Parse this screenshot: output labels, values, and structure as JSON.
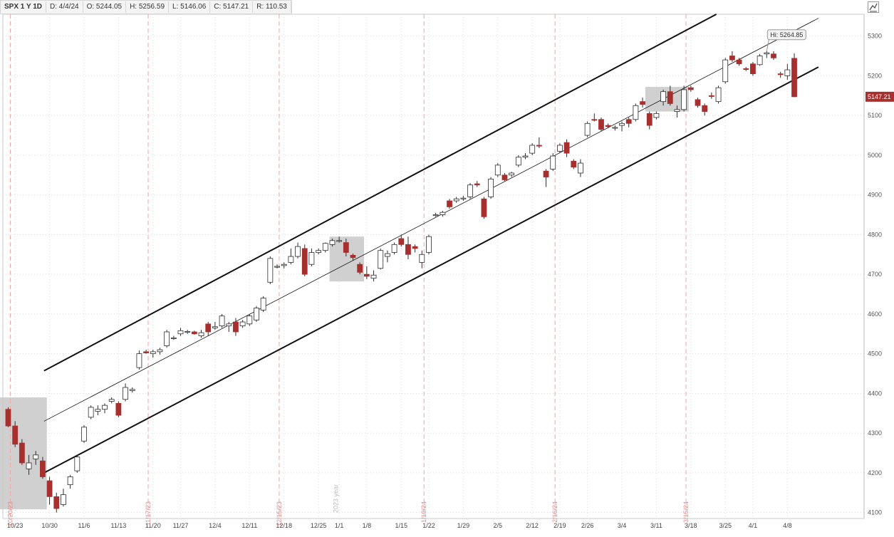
{
  "header": {
    "symbol": "SPX 1 Y 1D",
    "date": "D: 4/4/24",
    "open": "O: 5244.05",
    "high": "H: 5256.59",
    "low": "L: 5146.06",
    "close": "C: 5147.21",
    "range": "R: 110.53"
  },
  "chart_data": {
    "type": "candlestick",
    "ylim": [
      4085,
      5355
    ],
    "yticks": [
      4100,
      4200,
      4300,
      4400,
      4500,
      4600,
      4700,
      4800,
      4900,
      5000,
      5100,
      5200,
      5300
    ],
    "last_price_label": "5147.21",
    "high_callout": "Hi: 5264.85",
    "year_marker": "2023 year",
    "xtick_labels": [
      {
        "label": "10/23",
        "index": 1
      },
      {
        "label": "10/30",
        "index": 6
      },
      {
        "label": "11/6",
        "index": 11
      },
      {
        "label": "11/13",
        "index": 16
      },
      {
        "label": "11/20",
        "index": 21
      },
      {
        "label": "11/27",
        "index": 25
      },
      {
        "label": "12/4",
        "index": 30
      },
      {
        "label": "12/11",
        "index": 35
      },
      {
        "label": "12/18",
        "index": 40
      },
      {
        "label": "12/25",
        "index": 45
      },
      {
        "label": "1/1",
        "index": 48
      },
      {
        "label": "1/8",
        "index": 52
      },
      {
        "label": "1/15",
        "index": 57
      },
      {
        "label": "1/22",
        "index": 61
      },
      {
        "label": "1/29",
        "index": 66
      },
      {
        "label": "2/5",
        "index": 71
      },
      {
        "label": "2/12",
        "index": 76
      },
      {
        "label": "2/19",
        "index": 80
      },
      {
        "label": "2/26",
        "index": 84
      },
      {
        "label": "3/4",
        "index": 89
      },
      {
        "label": "3/11",
        "index": 94
      },
      {
        "label": "3/18",
        "index": 99
      },
      {
        "label": "3/25",
        "index": 104
      },
      {
        "label": "4/1",
        "index": 108
      },
      {
        "label": "4/8",
        "index": 113
      }
    ],
    "vertical_markers": [
      {
        "label": "10/20/23",
        "index": 0.3
      },
      {
        "label": "11/17/23",
        "index": 20.3
      },
      {
        "label": "12/15/23",
        "index": 39.3
      },
      {
        "label": "1/19/24",
        "index": 60.3
      },
      {
        "label": "2/16/24",
        "index": 79.3
      },
      {
        "label": "3/15/24",
        "index": 98.3
      }
    ],
    "shaded_boxes": [
      {
        "from": -3.1,
        "to": 5.6,
        "low": 4108,
        "high": 4390
      },
      {
        "from": 46.6,
        "to": 51.6,
        "low": 4682,
        "high": 4795
      },
      {
        "from": 92.4,
        "to": 98.7,
        "low": 5110,
        "high": 5172
      }
    ],
    "trend_lines": [
      {
        "name": "upper",
        "from": [
          5.2,
          4457
        ],
        "to": [
          102.7,
          5355
        ]
      },
      {
        "name": "middle",
        "from": [
          5.2,
          4330
        ],
        "to": [
          117.5,
          5345
        ]
      },
      {
        "name": "lower",
        "from": [
          5.2,
          4200
        ],
        "to": [
          117.5,
          5222
        ]
      }
    ],
    "candles": [
      [
        4360,
        4365,
        4315,
        4318
      ],
      [
        4318,
        4330,
        4265,
        4272
      ],
      [
        4275,
        4285,
        4220,
        4225
      ],
      [
        4210,
        4245,
        4195,
        4225
      ],
      [
        4235,
        4255,
        4220,
        4245
      ],
      [
        4230,
        4240,
        4185,
        4190
      ],
      [
        4180,
        4190,
        4120,
        4140
      ],
      [
        4140,
        4150,
        4100,
        4110
      ],
      [
        4120,
        4160,
        4115,
        4145
      ],
      [
        4170,
        4195,
        4160,
        4190
      ],
      [
        4205,
        4245,
        4200,
        4240
      ],
      [
        4280,
        4320,
        4275,
        4315
      ],
      [
        4340,
        4370,
        4335,
        4365
      ],
      [
        4355,
        4370,
        4345,
        4360
      ],
      [
        4360,
        4375,
        4350,
        4370
      ],
      [
        4380,
        4390,
        4375,
        4385
      ],
      [
        4375,
        4380,
        4340,
        4345
      ],
      [
        4385,
        4425,
        4380,
        4415
      ],
      [
        4407,
        4415,
        4402,
        4410
      ],
      [
        4465,
        4508,
        4460,
        4500
      ],
      [
        4505,
        4510,
        4500,
        4502
      ],
      [
        4500,
        4510,
        4490,
        4505
      ],
      [
        4505,
        4515,
        4498,
        4510
      ],
      [
        4520,
        4560,
        4515,
        4555
      ],
      [
        4540,
        4545,
        4535,
        4540
      ],
      [
        4550,
        4565,
        4545,
        4558
      ],
      [
        4555,
        4560,
        4550,
        4556
      ],
      [
        4555,
        4558,
        4548,
        4550
      ],
      [
        4545,
        4560,
        4540,
        4553
      ],
      [
        4575,
        4580,
        4545,
        4555
      ],
      [
        4565,
        4580,
        4560,
        4568
      ],
      [
        4570,
        4600,
        4565,
        4595
      ],
      [
        4570,
        4580,
        4555,
        4575
      ],
      [
        4580,
        4590,
        4545,
        4555
      ],
      [
        4570,
        4585,
        4565,
        4580
      ],
      [
        4575,
        4600,
        4570,
        4595
      ],
      [
        4585,
        4620,
        4580,
        4615
      ],
      [
        4610,
        4645,
        4605,
        4640
      ],
      [
        4680,
        4745,
        4675,
        4740
      ],
      [
        4720,
        4725,
        4715,
        4720
      ],
      [
        4722,
        4730,
        4715,
        4725
      ],
      [
        4730,
        4765,
        4725,
        4745
      ],
      [
        4745,
        4780,
        4740,
        4770
      ],
      [
        4765,
        4775,
        4695,
        4700
      ],
      [
        4725,
        4765,
        4720,
        4755
      ],
      [
        4755,
        4765,
        4750,
        4760
      ],
      [
        4760,
        4780,
        4755,
        4778
      ],
      [
        4775,
        4790,
        4770,
        4785
      ],
      [
        4785,
        4795,
        4780,
        4785
      ],
      [
        4780,
        4790,
        4745,
        4755
      ],
      [
        4748,
        4752,
        4735,
        4742
      ],
      [
        4725,
        4730,
        4700,
        4705
      ],
      [
        4700,
        4720,
        4688,
        4695
      ],
      [
        4690,
        4710,
        4682,
        4698
      ],
      [
        4715,
        4765,
        4712,
        4760
      ],
      [
        4745,
        4760,
        4730,
        4752
      ],
      [
        4755,
        4780,
        4750,
        4775
      ],
      [
        4790,
        4800,
        4770,
        4775
      ],
      [
        4775,
        4795,
        4738,
        4750
      ],
      [
        4770,
        4775,
        4755,
        4765
      ],
      [
        4730,
        4760,
        4715,
        4750
      ],
      [
        4755,
        4800,
        4750,
        4795
      ],
      [
        4850,
        4855,
        4845,
        4850
      ],
      [
        4850,
        4860,
        4845,
        4856
      ],
      [
        4885,
        4890,
        4865,
        4870
      ],
      [
        4885,
        4895,
        4880,
        4890
      ],
      [
        4890,
        4898,
        4885,
        4892
      ],
      [
        4895,
        4930,
        4890,
        4925
      ],
      [
        4928,
        4935,
        4920,
        4925
      ],
      [
        4890,
        4895,
        4840,
        4845
      ],
      [
        4895,
        4945,
        4890,
        4940
      ],
      [
        4950,
        4980,
        4945,
        4975
      ],
      [
        4950,
        4955,
        4935,
        4938
      ],
      [
        4950,
        4958,
        4945,
        4955
      ],
      [
        4975,
        5000,
        4970,
        4995
      ],
      [
        4995,
        5005,
        4990,
        4998
      ],
      [
        5005,
        5030,
        5000,
        5025
      ],
      [
        5025,
        5045,
        5018,
        5023
      ],
      [
        4960,
        4965,
        4920,
        4945
      ],
      [
        4965,
        5005,
        4960,
        4998
      ],
      [
        5010,
        5030,
        5005,
        5025
      ],
      [
        5032,
        5040,
        4995,
        5005
      ],
      [
        4985,
        4990,
        4965,
        4970
      ],
      [
        4955,
        4990,
        4945,
        4980
      ],
      [
        5050,
        5085,
        5045,
        5080
      ],
      [
        5090,
        5105,
        5085,
        5088
      ],
      [
        5090,
        5095,
        5060,
        5065
      ],
      [
        5075,
        5080,
        5068,
        5072
      ],
      [
        5068,
        5075,
        5062,
        5070
      ],
      [
        5075,
        5085,
        5060,
        5080
      ],
      [
        5090,
        5095,
        5070,
        5080
      ],
      [
        5090,
        5130,
        5085,
        5125
      ],
      [
        5135,
        5145,
        5120,
        5128
      ],
      [
        5105,
        5110,
        5065,
        5075
      ],
      [
        5095,
        5110,
        5090,
        5105
      ],
      [
        5135,
        5165,
        5125,
        5160
      ],
      [
        5160,
        5175,
        5125,
        5130
      ],
      [
        5110,
        5125,
        5095,
        5115
      ],
      [
        5115,
        5175,
        5110,
        5165
      ],
      [
        5170,
        5175,
        5160,
        5165
      ],
      [
        5140,
        5145,
        5120,
        5125
      ],
      [
        5125,
        5130,
        5100,
        5110
      ],
      [
        5150,
        5158,
        5142,
        5148
      ],
      [
        5135,
        5175,
        5130,
        5170
      ],
      [
        5185,
        5245,
        5180,
        5240
      ],
      [
        5250,
        5262,
        5235,
        5240
      ],
      [
        5240,
        5245,
        5225,
        5230
      ],
      [
        5218,
        5222,
        5212,
        5216
      ],
      [
        5230,
        5235,
        5200,
        5205
      ],
      [
        5228,
        5255,
        5225,
        5250
      ],
      [
        5255,
        5262,
        5245,
        5258
      ],
      [
        5255,
        5262,
        5240,
        5245
      ],
      [
        5205,
        5210,
        5195,
        5203
      ],
      [
        5200,
        5230,
        5190,
        5215
      ],
      [
        5244.05,
        5256.59,
        5146.06,
        5147.21
      ]
    ]
  },
  "colors": {
    "up_body": "#ffffff",
    "down_body": "#a7302f",
    "wick": "#2d2d2d",
    "grid": "#dcdcdc",
    "marker": "#f0a4a4",
    "shade": "#c8c8c8",
    "trend": "#111111",
    "price_tag": "#a7302f"
  },
  "icons": {
    "zoom": "zigzag-zoom-icon"
  }
}
